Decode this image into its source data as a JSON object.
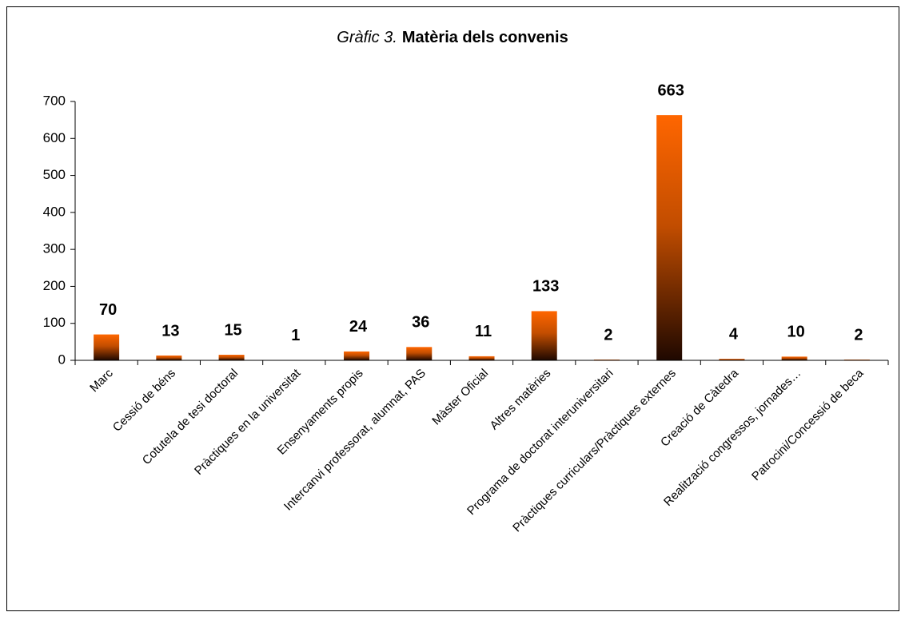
{
  "chart_data": {
    "type": "bar",
    "title_prefix": "Gràfic 3.",
    "title": "Matèria dels convenis",
    "categories": [
      "Marc",
      "Cessió de béns",
      "Cotutela de tesi doctoral",
      "Pràctiques en la universitat",
      "Ensenyaments propis",
      "Intercanvi professorat, alumnat, PAS",
      "Màster Oficial",
      "Altres matèries",
      "Programa de doctorat interuniversitari",
      "Pràctiques curriculars/Pràctiques externes",
      "Creació de Càtedra",
      "Realització congressos, jornades…",
      "Patrocini/Concessió de beca"
    ],
    "values": [
      70,
      13,
      15,
      1,
      24,
      36,
      11,
      133,
      2,
      663,
      4,
      10,
      2
    ],
    "color": "#ff6600",
    "ylim": [
      0,
      700
    ],
    "yticks": [
      0,
      100,
      200,
      300,
      400,
      500,
      600,
      700
    ],
    "grid": false
  }
}
